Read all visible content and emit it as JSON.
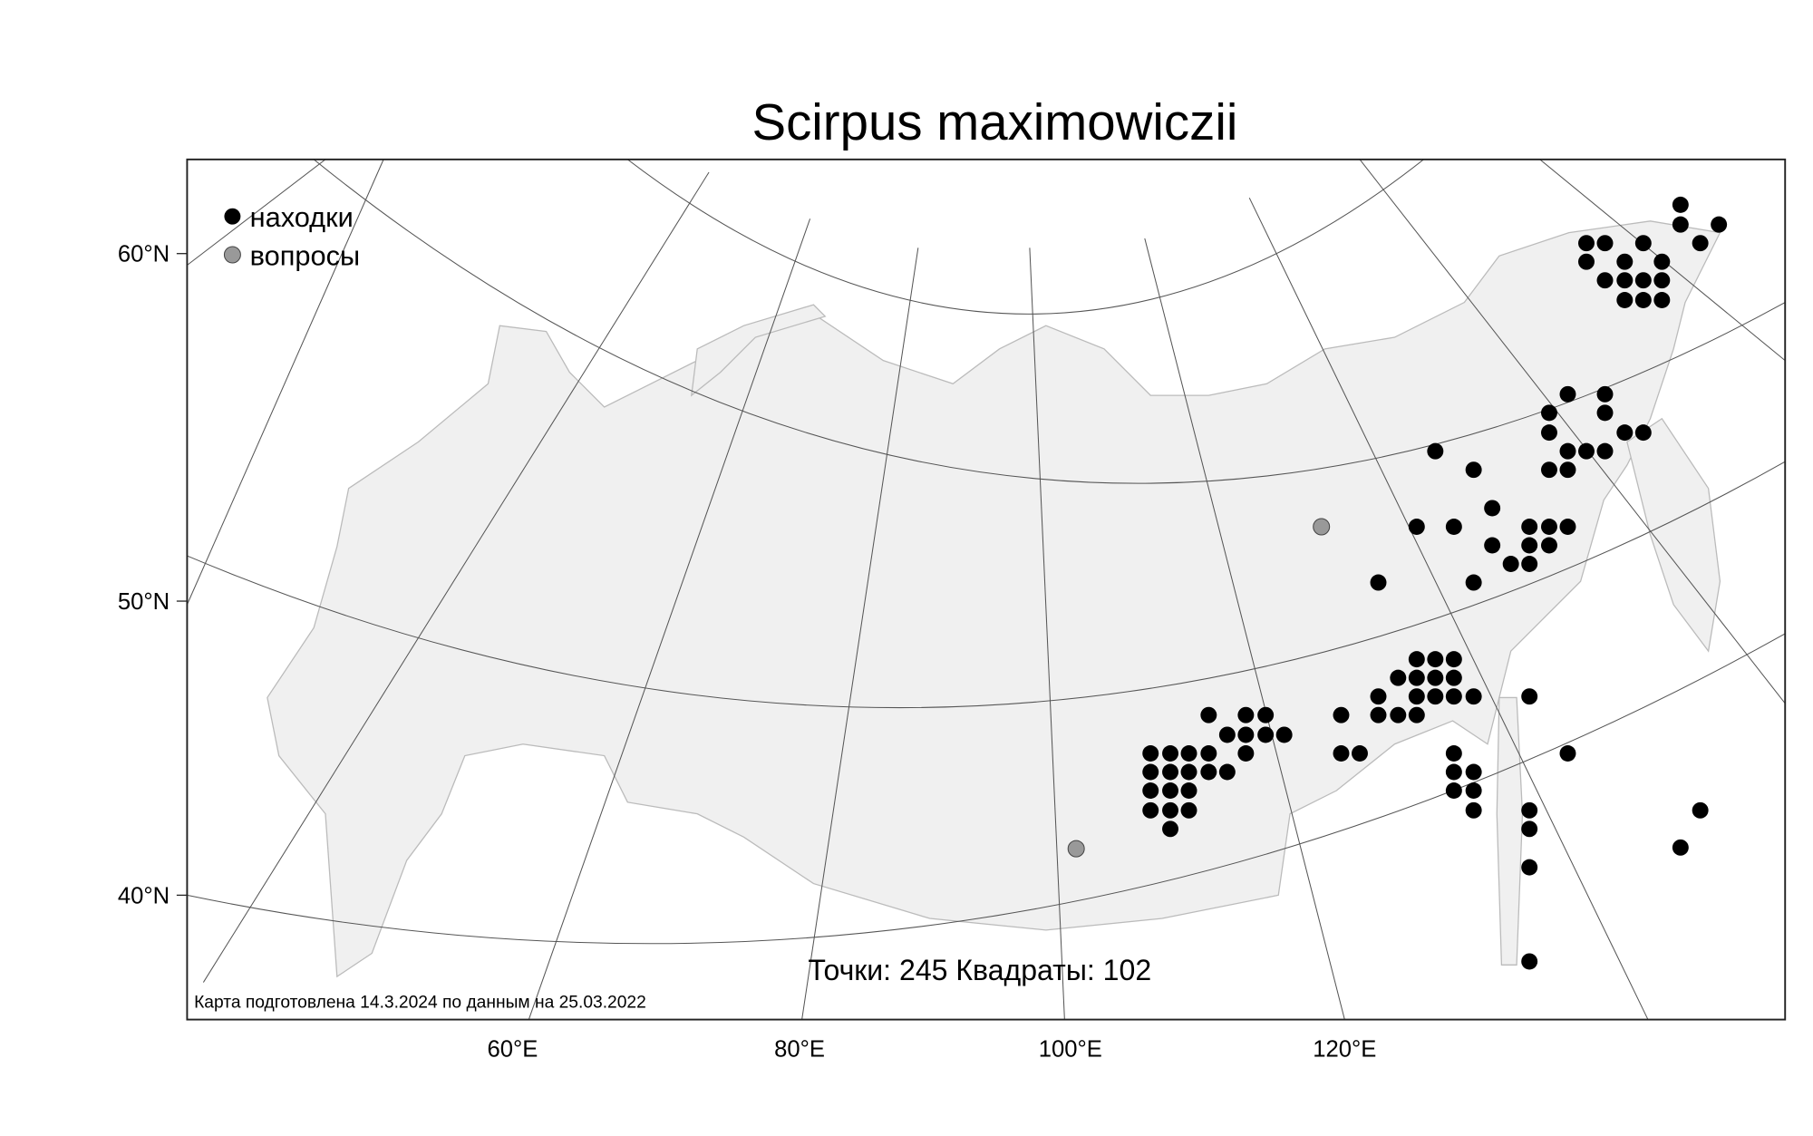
{
  "title": "Scirpus maximowiczii",
  "legend": {
    "items": [
      {
        "label": "находки",
        "color": "#000000"
      },
      {
        "label": "вопросы",
        "color": "#999999"
      }
    ]
  },
  "axes": {
    "lat_labels": [
      "60°N",
      "50°N",
      "40°N"
    ],
    "lon_labels": [
      "60°E",
      "80°E",
      "100°E",
      "120°E"
    ]
  },
  "stats": "Точки: 245 Квадраты: 102",
  "footer": "Карта подготовлена 14.3.2024 по данным на 25.03.2022",
  "colors": {
    "land": "#f0f0f0",
    "coast": "#bbbbbb",
    "graticule": "#555555",
    "finds": "#000000",
    "questions": "#999999"
  }
}
